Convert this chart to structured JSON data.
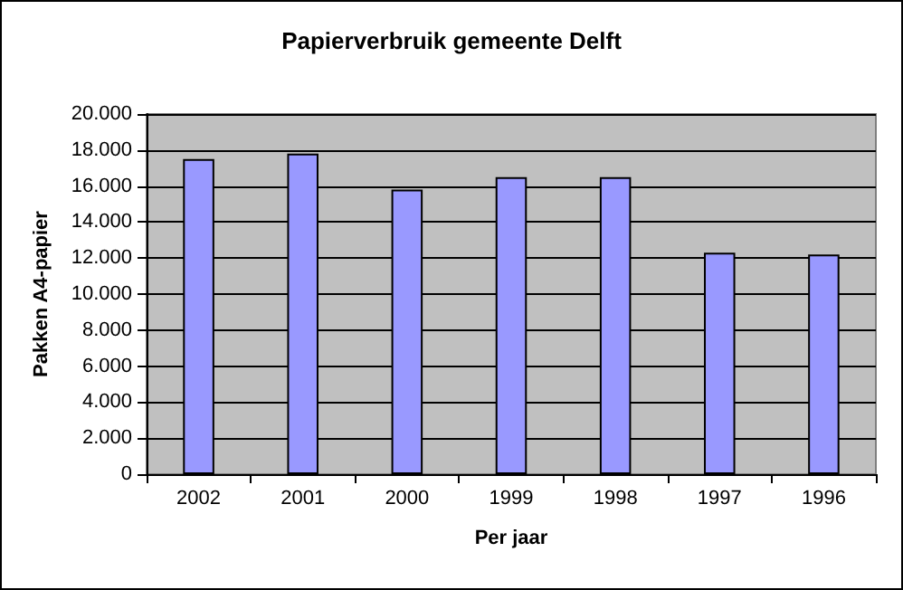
{
  "chart_data": {
    "type": "bar",
    "title": "Papierverbruik gemeente Delft",
    "xlabel": "Per jaar",
    "ylabel": "Pakken A4-papier",
    "categories": [
      "2002",
      "2001",
      "2000",
      "1999",
      "1998",
      "1997",
      "1996"
    ],
    "values": [
      17500,
      17800,
      15800,
      16500,
      16500,
      12300,
      12200
    ],
    "color": "#9999ff",
    "ylim": [
      0,
      20000
    ],
    "yticks": [
      {
        "value": 0,
        "label": "0"
      },
      {
        "value": 2000,
        "label": "2.000"
      },
      {
        "value": 4000,
        "label": "4.000"
      },
      {
        "value": 6000,
        "label": "6.000"
      },
      {
        "value": 8000,
        "label": "8.000"
      },
      {
        "value": 10000,
        "label": "10.000"
      },
      {
        "value": 12000,
        "label": "12.000"
      },
      {
        "value": 14000,
        "label": "14.000"
      },
      {
        "value": 16000,
        "label": "16.000"
      },
      {
        "value": 18000,
        "label": "18.000"
      },
      {
        "value": 20000,
        "label": "20.000"
      }
    ],
    "grid": "y"
  }
}
